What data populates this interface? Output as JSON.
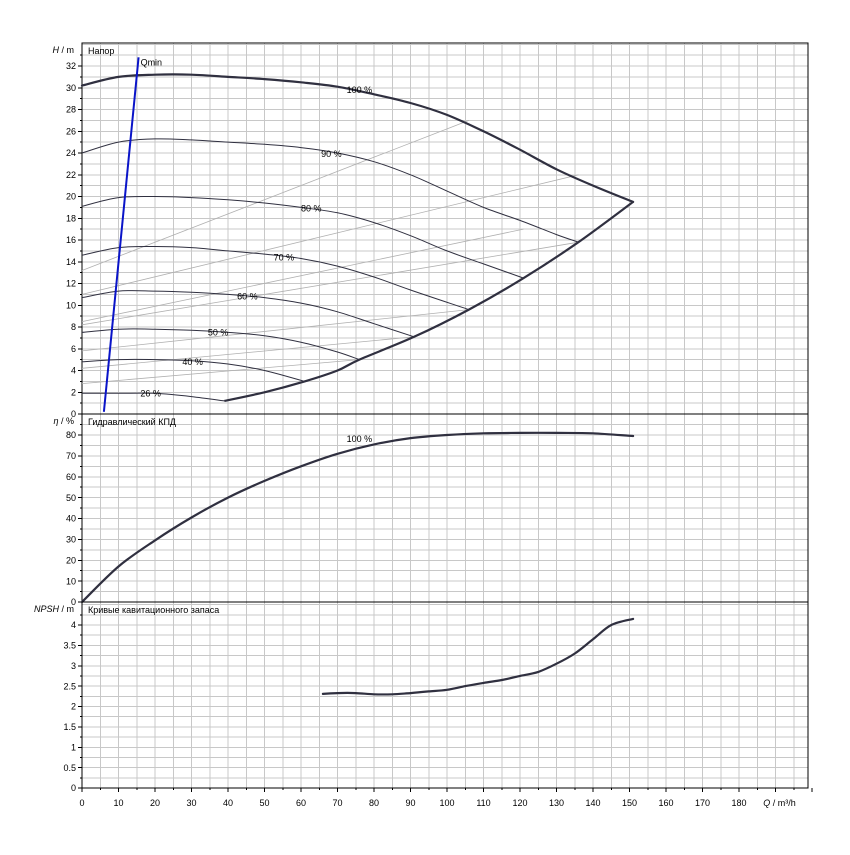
{
  "chart_data": [
    {
      "type": "line",
      "title": "Напор",
      "ylabel": {
        "symbol": "H",
        "unit": "/ m"
      },
      "xlim": [
        0,
        200
      ],
      "ylim": [
        0,
        34
      ],
      "xticks": [
        0,
        10,
        20,
        30,
        40,
        50,
        60,
        70,
        80,
        90,
        100,
        110,
        120,
        130,
        140,
        150,
        160,
        170,
        180
      ],
      "yticks": [
        0,
        2,
        4,
        6,
        8,
        10,
        12,
        14,
        16,
        18,
        20,
        22,
        24,
        26,
        28,
        30,
        32
      ],
      "grid": true,
      "series": [
        {
          "name": "100 %",
          "x": [
            0,
            10,
            20,
            30,
            40,
            50,
            60,
            70,
            80,
            90,
            100,
            110,
            120,
            130,
            140,
            151
          ],
          "y": [
            30.2,
            31.0,
            31.2,
            31.2,
            31.0,
            30.8,
            30.5,
            30.1,
            29.4,
            28.6,
            27.5,
            26.0,
            24.3,
            22.5,
            21.0,
            19.5
          ]
        },
        {
          "name": "90 %",
          "x": [
            0,
            10,
            20,
            30,
            40,
            50,
            60,
            70,
            80,
            90,
            100,
            110,
            120,
            130,
            136
          ],
          "y": [
            24.0,
            25.0,
            25.3,
            25.2,
            25.0,
            24.8,
            24.5,
            24.0,
            23.2,
            22.0,
            20.5,
            19.0,
            17.8,
            16.5,
            15.8
          ]
        },
        {
          "name": "80 %",
          "x": [
            0,
            10,
            20,
            30,
            40,
            50,
            60,
            70,
            80,
            90,
            100,
            110,
            121
          ],
          "y": [
            19.1,
            19.9,
            20.0,
            19.9,
            19.7,
            19.4,
            19.0,
            18.5,
            17.6,
            16.4,
            15.0,
            13.8,
            12.5
          ]
        },
        {
          "name": "70 %",
          "x": [
            0,
            10,
            20,
            30,
            40,
            50,
            60,
            70,
            80,
            90,
            106
          ],
          "y": [
            14.6,
            15.3,
            15.4,
            15.3,
            15.0,
            14.7,
            14.3,
            13.6,
            12.6,
            11.4,
            9.6
          ]
        },
        {
          "name": "60 %",
          "x": [
            0,
            10,
            20,
            30,
            40,
            50,
            60,
            70,
            80,
            91
          ],
          "y": [
            10.7,
            11.3,
            11.3,
            11.2,
            11.0,
            10.7,
            10.2,
            9.4,
            8.3,
            7.1
          ]
        },
        {
          "name": "50 %",
          "x": [
            0,
            10,
            20,
            30,
            40,
            50,
            60,
            70,
            76
          ],
          "y": [
            7.5,
            7.8,
            7.8,
            7.7,
            7.5,
            7.2,
            6.6,
            5.7,
            5.0
          ]
        },
        {
          "name": "40 %",
          "x": [
            0,
            10,
            20,
            30,
            40,
            50,
            61
          ],
          "y": [
            4.8,
            5.0,
            5.0,
            4.9,
            4.6,
            4.0,
            3.0
          ]
        },
        {
          "name": "26 %",
          "x": [
            0,
            10,
            20,
            30,
            39
          ],
          "y": [
            1.9,
            1.9,
            1.9,
            1.6,
            1.2
          ]
        }
      ],
      "limit_curve": {
        "x": [
          39,
          50,
          61,
          70,
          76,
          91,
          106,
          121,
          136,
          151
        ],
        "y": [
          1.2,
          2.0,
          3.0,
          4.0,
          5.0,
          7.1,
          9.6,
          12.5,
          15.8,
          19.5
        ]
      },
      "iso_efficiency_lines": [
        {
          "x": [
            0,
            106
          ],
          "y": [
            13.2,
            27.0
          ]
        },
        {
          "x": [
            0,
            136
          ],
          "y": [
            11.0,
            22.0
          ]
        },
        {
          "x": [
            0,
            121
          ],
          "y": [
            8.5,
            17.0
          ]
        },
        {
          "x": [
            0,
            136
          ],
          "y": [
            8.2,
            15.8
          ]
        },
        {
          "x": [
            0,
            106
          ],
          "y": [
            5.8,
            9.6
          ]
        },
        {
          "x": [
            0,
            91
          ],
          "y": [
            4.2,
            7.1
          ]
        },
        {
          "x": [
            0,
            76
          ],
          "y": [
            2.8,
            5.0
          ]
        }
      ],
      "qmin": {
        "label": "Qmin",
        "x": [
          6,
          15.5
        ],
        "y": [
          0.2,
          32.8
        ]
      },
      "annotations": [
        {
          "text": "100 %",
          "x": 72.5,
          "y": 29.8
        },
        {
          "text": "90 %",
          "x": 65.5,
          "y": 23.9
        },
        {
          "text": "80 %",
          "x": 60,
          "y": 18.9
        },
        {
          "text": "70 %",
          "x": 52.5,
          "y": 14.4
        },
        {
          "text": "60 %",
          "x": 42.5,
          "y": 10.8
        },
        {
          "text": "50 %",
          "x": 34.5,
          "y": 7.5
        },
        {
          "text": "40 %",
          "x": 27.5,
          "y": 4.8
        },
        {
          "text": "26 %",
          "x": 16,
          "y": 1.9
        }
      ]
    },
    {
      "type": "line",
      "title": "Гидравлический КПД",
      "ylabel": {
        "symbol": "η",
        "unit": "/ %"
      },
      "xlim": [
        0,
        200
      ],
      "ylim": [
        0,
        85
      ],
      "yticks": [
        0,
        10,
        20,
        30,
        40,
        50,
        60,
        70,
        80
      ],
      "grid": true,
      "series": [
        {
          "name": "100 %",
          "x": [
            0,
            10,
            20,
            30,
            40,
            50,
            60,
            70,
            80,
            90,
            100,
            110,
            120,
            130,
            140,
            151
          ],
          "y": [
            0,
            17,
            29.5,
            40.5,
            50,
            58,
            65,
            71,
            75.5,
            78.5,
            80,
            80.8,
            81,
            81,
            80.8,
            79.5
          ]
        }
      ],
      "annotations": [
        {
          "text": "100 %",
          "x": 72.5,
          "y": 78
        }
      ]
    },
    {
      "type": "line",
      "title": "Кривые кавитационного запаса",
      "ylabel": {
        "symbol": "NPSH",
        "unit": "/ m"
      },
      "xlabel": {
        "symbol": "Q",
        "unit": "/ m³/h"
      },
      "xlim": [
        0,
        200
      ],
      "ylim": [
        0,
        4.5
      ],
      "yticks": [
        0,
        0.5,
        1,
        1.5,
        2,
        2.5,
        3,
        3.5,
        4
      ],
      "grid": true,
      "series": [
        {
          "name": "",
          "x": [
            66,
            70,
            75,
            80,
            85,
            90,
            95,
            100,
            105,
            110,
            115,
            120,
            125,
            130,
            135,
            140,
            145,
            151
          ],
          "y": [
            2.31,
            2.33,
            2.33,
            2.3,
            2.3,
            2.33,
            2.37,
            2.41,
            2.5,
            2.58,
            2.65,
            2.75,
            2.85,
            3.05,
            3.3,
            3.65,
            4.0,
            4.15
          ]
        }
      ]
    }
  ]
}
